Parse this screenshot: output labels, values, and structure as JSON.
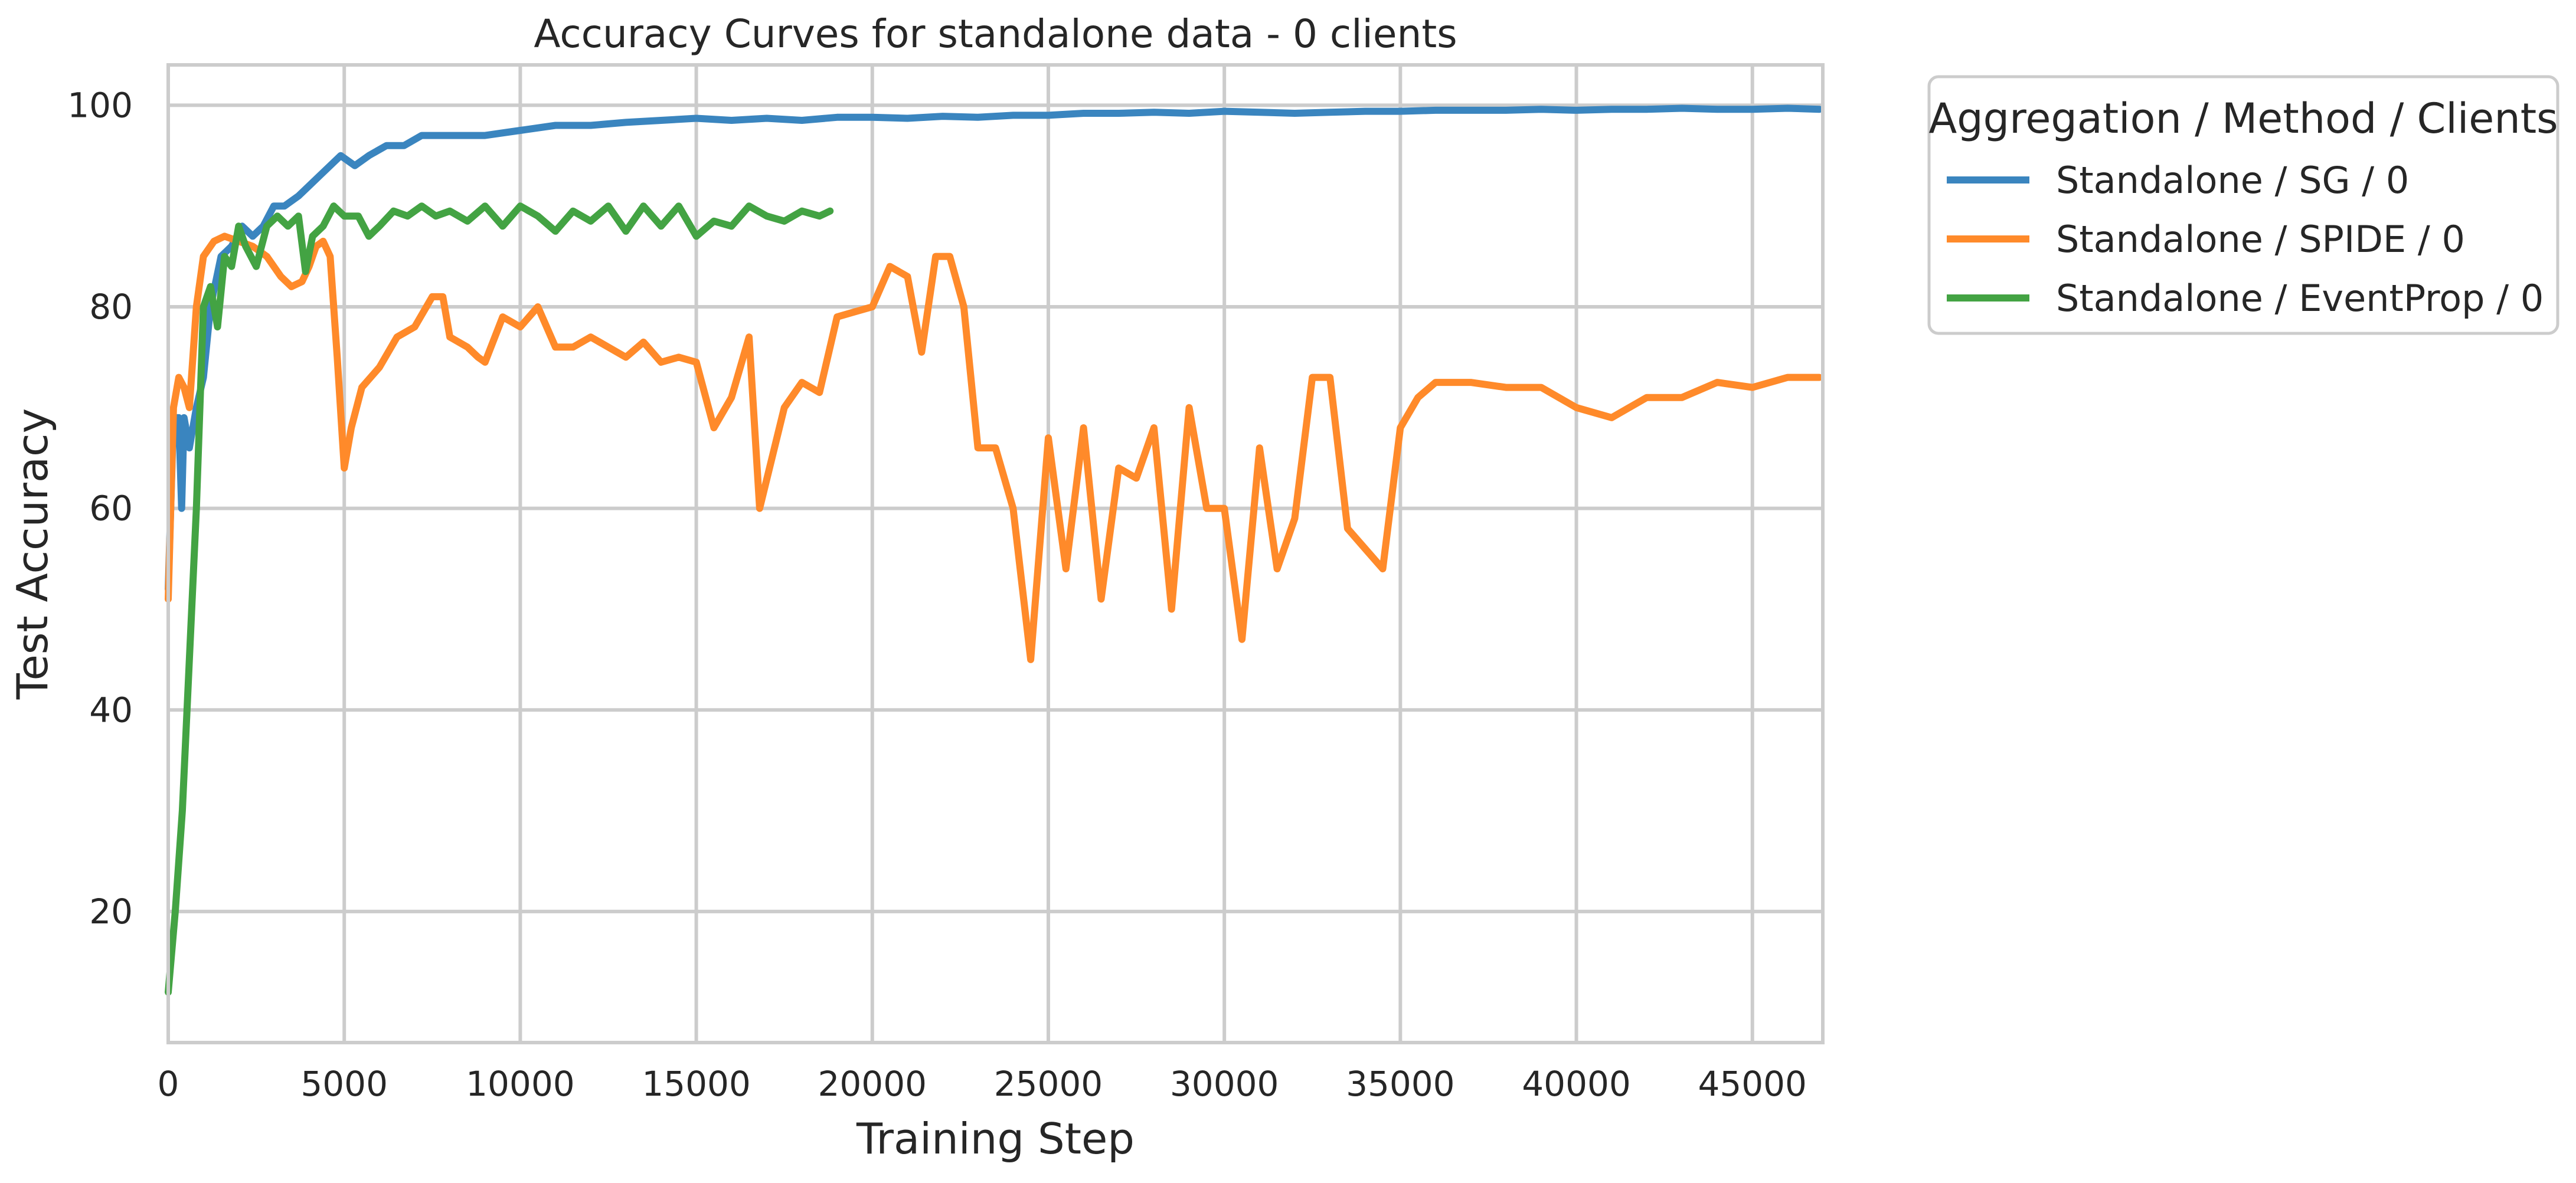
{
  "chart_data": {
    "type": "line",
    "title": "Accuracy Curves for standalone data - 0 clients",
    "xlabel": "Training Step",
    "ylabel": "Test Accuracy",
    "xlim": [
      0,
      47000
    ],
    "ylim": [
      7,
      104
    ],
    "xticks": [
      0,
      5000,
      10000,
      15000,
      20000,
      25000,
      30000,
      35000,
      40000,
      45000
    ],
    "yticks": [
      20,
      40,
      60,
      80,
      100
    ],
    "grid": true,
    "legend": {
      "title": "Aggregation / Method / Clients",
      "placement": "outside-top-right"
    },
    "series": [
      {
        "name": "Standalone / SG / 0",
        "color": "#3a85bf",
        "points": [
          [
            0,
            52
          ],
          [
            150,
            69
          ],
          [
            300,
            69
          ],
          [
            380,
            60
          ],
          [
            450,
            69
          ],
          [
            600,
            66
          ],
          [
            800,
            70
          ],
          [
            1000,
            73
          ],
          [
            1200,
            80
          ],
          [
            1500,
            85
          ],
          [
            1800,
            86
          ],
          [
            2100,
            88
          ],
          [
            2400,
            87
          ],
          [
            2700,
            88
          ],
          [
            3000,
            90
          ],
          [
            3300,
            90
          ],
          [
            3700,
            91
          ],
          [
            4000,
            92
          ],
          [
            4300,
            93
          ],
          [
            4600,
            94
          ],
          [
            4900,
            95
          ],
          [
            5300,
            94
          ],
          [
            5700,
            95
          ],
          [
            6200,
            96
          ],
          [
            6700,
            96
          ],
          [
            7200,
            97
          ],
          [
            8000,
            97
          ],
          [
            9000,
            97
          ],
          [
            10000,
            97.5
          ],
          [
            11000,
            98
          ],
          [
            12000,
            98
          ],
          [
            13000,
            98.3
          ],
          [
            14000,
            98.5
          ],
          [
            15000,
            98.7
          ],
          [
            16000,
            98.5
          ],
          [
            17000,
            98.7
          ],
          [
            18000,
            98.5
          ],
          [
            19000,
            98.8
          ],
          [
            20000,
            98.8
          ],
          [
            21000,
            98.7
          ],
          [
            22000,
            98.9
          ],
          [
            23000,
            98.8
          ],
          [
            24000,
            99
          ],
          [
            25000,
            99
          ],
          [
            26000,
            99.2
          ],
          [
            27000,
            99.2
          ],
          [
            28000,
            99.3
          ],
          [
            29000,
            99.2
          ],
          [
            30000,
            99.4
          ],
          [
            31000,
            99.3
          ],
          [
            32000,
            99.2
          ],
          [
            33000,
            99.3
          ],
          [
            34000,
            99.4
          ],
          [
            35000,
            99.4
          ],
          [
            36000,
            99.5
          ],
          [
            37000,
            99.5
          ],
          [
            38000,
            99.5
          ],
          [
            39000,
            99.6
          ],
          [
            40000,
            99.5
          ],
          [
            41000,
            99.6
          ],
          [
            42000,
            99.6
          ],
          [
            43000,
            99.7
          ],
          [
            44000,
            99.6
          ],
          [
            45000,
            99.6
          ],
          [
            46000,
            99.7
          ],
          [
            46900,
            99.6
          ]
        ]
      },
      {
        "name": "Standalone / SPIDE / 0",
        "color": "#ff8a2a",
        "points": [
          [
            0,
            51
          ],
          [
            150,
            70
          ],
          [
            300,
            73
          ],
          [
            450,
            72
          ],
          [
            600,
            70
          ],
          [
            800,
            80
          ],
          [
            1000,
            85
          ],
          [
            1300,
            86.5
          ],
          [
            1600,
            87
          ],
          [
            2000,
            86.5
          ],
          [
            2400,
            86
          ],
          [
            2800,
            85
          ],
          [
            3200,
            83
          ],
          [
            3500,
            82
          ],
          [
            3800,
            82.5
          ],
          [
            4000,
            84
          ],
          [
            4200,
            86
          ],
          [
            4400,
            86.5
          ],
          [
            4600,
            85
          ],
          [
            4800,
            75
          ],
          [
            5000,
            64
          ],
          [
            5200,
            68
          ],
          [
            5500,
            72
          ],
          [
            6000,
            74
          ],
          [
            6500,
            77
          ],
          [
            7000,
            78
          ],
          [
            7500,
            81
          ],
          [
            7800,
            81
          ],
          [
            8000,
            77
          ],
          [
            8500,
            76
          ],
          [
            8800,
            75
          ],
          [
            9000,
            74.5
          ],
          [
            9500,
            79
          ],
          [
            10000,
            78
          ],
          [
            10500,
            80
          ],
          [
            11000,
            76
          ],
          [
            11500,
            76
          ],
          [
            12000,
            77
          ],
          [
            12500,
            76
          ],
          [
            13000,
            75
          ],
          [
            13500,
            76.5
          ],
          [
            14000,
            74.5
          ],
          [
            14500,
            75
          ],
          [
            15000,
            74.5
          ],
          [
            15500,
            68
          ],
          [
            16000,
            71
          ],
          [
            16500,
            77
          ],
          [
            16800,
            60
          ],
          [
            17500,
            70
          ],
          [
            18000,
            72.5
          ],
          [
            18500,
            71.5
          ],
          [
            19000,
            79
          ],
          [
            19500,
            79.5
          ],
          [
            20000,
            80
          ],
          [
            20500,
            84
          ],
          [
            21000,
            83
          ],
          [
            21400,
            75.5
          ],
          [
            21800,
            85
          ],
          [
            22200,
            85
          ],
          [
            22600,
            80
          ],
          [
            23000,
            66
          ],
          [
            23500,
            66
          ],
          [
            24000,
            60
          ],
          [
            24500,
            45
          ],
          [
            25000,
            67
          ],
          [
            25500,
            54
          ],
          [
            26000,
            68
          ],
          [
            26500,
            51
          ],
          [
            27000,
            64
          ],
          [
            27500,
            63
          ],
          [
            28000,
            68
          ],
          [
            28500,
            50
          ],
          [
            29000,
            70
          ],
          [
            29500,
            60
          ],
          [
            30000,
            60
          ],
          [
            30500,
            47
          ],
          [
            31000,
            66
          ],
          [
            31500,
            54
          ],
          [
            32000,
            59
          ],
          [
            32500,
            73
          ],
          [
            33000,
            73
          ],
          [
            33500,
            58
          ],
          [
            34000,
            56
          ],
          [
            34500,
            54
          ],
          [
            35000,
            68
          ],
          [
            35500,
            71
          ],
          [
            36000,
            72.5
          ],
          [
            37000,
            72.5
          ],
          [
            38000,
            72
          ],
          [
            39000,
            72
          ],
          [
            40000,
            70
          ],
          [
            41000,
            69
          ],
          [
            42000,
            71
          ],
          [
            43000,
            71
          ],
          [
            44000,
            72.5
          ],
          [
            45000,
            72
          ],
          [
            46000,
            73
          ],
          [
            46900,
            73
          ]
        ]
      },
      {
        "name": "Standalone / EventProp / 0",
        "color": "#43a343",
        "points": [
          [
            0,
            12
          ],
          [
            200,
            20
          ],
          [
            400,
            30
          ],
          [
            600,
            45
          ],
          [
            800,
            60
          ],
          [
            1000,
            80
          ],
          [
            1200,
            82
          ],
          [
            1400,
            78
          ],
          [
            1600,
            85
          ],
          [
            1800,
            84
          ],
          [
            2000,
            88
          ],
          [
            2200,
            86
          ],
          [
            2500,
            84
          ],
          [
            2800,
            88
          ],
          [
            3100,
            89
          ],
          [
            3400,
            88
          ],
          [
            3700,
            89
          ],
          [
            3900,
            83.5
          ],
          [
            4100,
            87
          ],
          [
            4400,
            88
          ],
          [
            4700,
            90
          ],
          [
            5000,
            89
          ],
          [
            5400,
            89
          ],
          [
            5700,
            87
          ],
          [
            6000,
            88
          ],
          [
            6400,
            89.5
          ],
          [
            6800,
            89
          ],
          [
            7200,
            90
          ],
          [
            7600,
            89
          ],
          [
            8000,
            89.5
          ],
          [
            8500,
            88.5
          ],
          [
            9000,
            90
          ],
          [
            9500,
            88
          ],
          [
            10000,
            90
          ],
          [
            10500,
            89
          ],
          [
            11000,
            87.5
          ],
          [
            11500,
            89.5
          ],
          [
            12000,
            88.5
          ],
          [
            12500,
            90
          ],
          [
            13000,
            87.5
          ],
          [
            13500,
            90
          ],
          [
            14000,
            88
          ],
          [
            14500,
            90
          ],
          [
            15000,
            87
          ],
          [
            15500,
            88.5
          ],
          [
            16000,
            88
          ],
          [
            16500,
            90
          ],
          [
            17000,
            89
          ],
          [
            17500,
            88.5
          ],
          [
            18000,
            89.5
          ],
          [
            18500,
            89
          ],
          [
            18800,
            89.5
          ]
        ]
      }
    ]
  }
}
